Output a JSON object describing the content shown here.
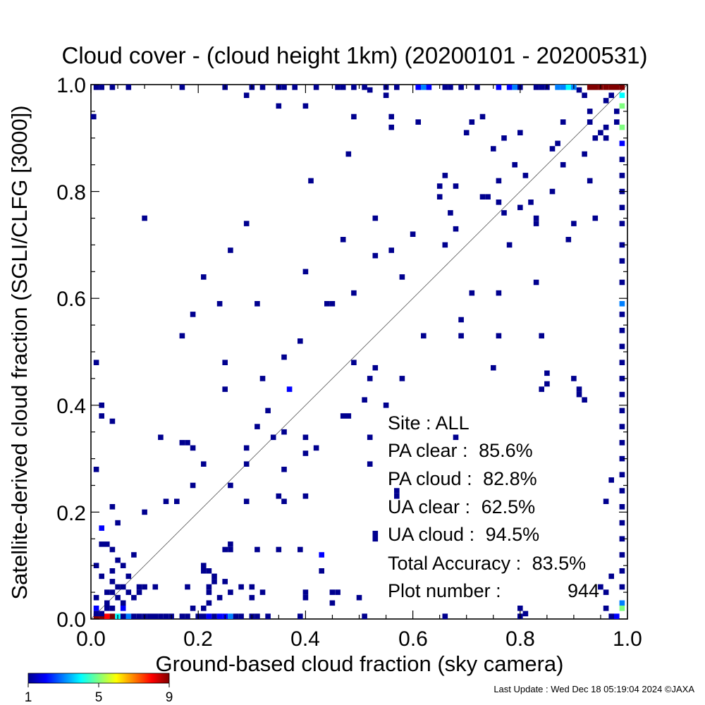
{
  "chart_data": {
    "type": "heatmap",
    "title": "Cloud cover - (cloud height 1km)  (20200101 - 20200531)",
    "xlabel": "Ground-based cloud fraction (sky camera)",
    "ylabel": "Satellite-derived cloud fraction (SGLI/CLFG [3000])",
    "xlim": [
      0,
      1
    ],
    "ylim": [
      0,
      1
    ],
    "x_ticks": [
      "0.0",
      "0.2",
      "0.4",
      "0.6",
      "0.8",
      "1.0"
    ],
    "y_ticks": [
      "0.0",
      "0.2",
      "0.4",
      "0.6",
      "0.8",
      "1.0"
    ],
    "grid": false,
    "reference_line": "1:1 diagonal",
    "colorbar": {
      "ticks": [
        "1",
        "5",
        "9"
      ],
      "min": 1,
      "max": 9,
      "colors": [
        "#00008f",
        "#0000ff",
        "#0080ff",
        "#00ffff",
        "#80ff80",
        "#ffff00",
        "#ff8000",
        "#ff0000",
        "#800000"
      ]
    },
    "stats": [
      {
        "label": "Site : ALL",
        "value": ""
      },
      {
        "label": "PA clear :",
        "value": "85.6%"
      },
      {
        "label": "PA cloud :",
        "value": "82.8%"
      },
      {
        "label": "UA clear :",
        "value": "62.5%"
      },
      {
        "label": "UA cloud :",
        "value": "94.5%"
      },
      {
        "label": "Total Accuracy :",
        "value": "83.5%"
      },
      {
        "label": "Plot number :",
        "value": "944"
      }
    ],
    "points": [
      [
        0.0,
        0.94,
        1
      ],
      [
        0.01,
        0.48,
        1
      ],
      [
        0.01,
        0.28,
        1
      ],
      [
        0.01,
        0.1,
        1
      ],
      [
        0.01,
        0.04,
        1
      ],
      [
        0.01,
        0.02,
        2
      ],
      [
        0.02,
        0.17,
        2
      ],
      [
        0.02,
        0.4,
        1
      ],
      [
        0.02,
        0.38,
        1
      ],
      [
        0.02,
        0.14,
        1
      ],
      [
        0.02,
        0.08,
        1
      ],
      [
        0.03,
        0.14,
        1
      ],
      [
        0.03,
        0.05,
        1
      ],
      [
        0.03,
        0.03,
        1
      ],
      [
        0.04,
        0.37,
        1
      ],
      [
        0.04,
        0.21,
        1
      ],
      [
        0.04,
        0.13,
        1
      ],
      [
        0.04,
        0.09,
        1
      ],
      [
        0.05,
        0.18,
        1
      ],
      [
        0.05,
        0.11,
        1
      ],
      [
        0.05,
        0.06,
        1
      ],
      [
        0.06,
        0.1,
        1
      ],
      [
        0.06,
        0.03,
        1
      ],
      [
        0.07,
        0.08,
        1
      ],
      [
        0.07,
        0.05,
        1
      ],
      [
        0.08,
        0.12,
        1
      ],
      [
        0.08,
        0.04,
        1
      ],
      [
        0.09,
        0.06,
        1
      ],
      [
        0.1,
        0.06,
        1
      ],
      [
        0.1,
        0.75,
        1
      ],
      [
        0.1,
        0.2,
        1
      ],
      [
        0.12,
        0.06,
        1
      ],
      [
        0.13,
        0.34,
        1
      ],
      [
        0.14,
        0.22,
        1
      ],
      [
        0.16,
        0.22,
        1
      ],
      [
        0.17,
        0.33,
        1
      ],
      [
        0.18,
        0.33,
        1
      ],
      [
        0.17,
        0.53,
        1
      ],
      [
        0.19,
        0.32,
        1
      ],
      [
        0.19,
        0.57,
        1
      ],
      [
        0.19,
        0.25,
        1
      ],
      [
        0.18,
        0.06,
        1
      ],
      [
        0.21,
        0.64,
        1
      ],
      [
        0.21,
        0.29,
        1
      ],
      [
        0.21,
        0.1,
        1
      ],
      [
        0.21,
        0.09,
        1
      ],
      [
        0.22,
        0.06,
        1
      ],
      [
        0.23,
        0.07,
        1
      ],
      [
        0.24,
        0.59,
        1
      ],
      [
        0.25,
        0.48,
        1
      ],
      [
        0.25,
        0.43,
        1
      ],
      [
        0.26,
        0.69,
        1
      ],
      [
        0.26,
        0.25,
        1
      ],
      [
        0.26,
        0.14,
        1
      ],
      [
        0.24,
        0.04,
        1
      ],
      [
        0.25,
        0.07,
        1
      ],
      [
        0.29,
        0.74,
        1
      ],
      [
        0.29,
        0.32,
        1
      ],
      [
        0.29,
        0.29,
        1
      ],
      [
        0.29,
        0.22,
        1
      ],
      [
        0.26,
        0.13,
        1
      ],
      [
        0.25,
        0.13,
        1
      ],
      [
        0.3,
        0.06,
        1
      ],
      [
        0.31,
        0.59,
        1
      ],
      [
        0.31,
        0.36,
        1
      ],
      [
        0.31,
        0.13,
        1
      ],
      [
        0.32,
        0.45,
        1
      ],
      [
        0.33,
        0.39,
        1
      ],
      [
        0.34,
        0.34,
        1
      ],
      [
        0.35,
        0.23,
        1
      ],
      [
        0.35,
        0.13,
        1
      ],
      [
        0.36,
        0.49,
        1
      ],
      [
        0.36,
        0.35,
        1
      ],
      [
        0.36,
        0.28,
        1
      ],
      [
        0.36,
        0.22,
        1
      ],
      [
        0.37,
        0.43,
        2
      ],
      [
        0.39,
        0.13,
        1
      ],
      [
        0.39,
        0.52,
        1
      ],
      [
        0.4,
        0.65,
        1
      ],
      [
        0.4,
        0.34,
        1
      ],
      [
        0.4,
        0.31,
        1
      ],
      [
        0.4,
        0.23,
        1
      ],
      [
        0.4,
        0.04,
        1
      ],
      [
        0.41,
        0.82,
        1
      ],
      [
        0.42,
        0.32,
        1
      ],
      [
        0.43,
        0.12,
        2
      ],
      [
        0.43,
        0.09,
        1
      ],
      [
        0.44,
        0.59,
        1
      ],
      [
        0.45,
        0.59,
        1
      ],
      [
        0.45,
        0.05,
        1
      ],
      [
        0.46,
        0.05,
        1
      ],
      [
        0.47,
        0.71,
        1
      ],
      [
        0.47,
        0.38,
        1
      ],
      [
        0.48,
        0.38,
        1
      ],
      [
        0.48,
        0.87,
        1
      ],
      [
        0.49,
        0.61,
        1
      ],
      [
        0.49,
        0.48,
        1
      ],
      [
        0.5,
        0.04,
        1
      ],
      [
        0.51,
        0.41,
        1
      ],
      [
        0.52,
        0.34,
        1
      ],
      [
        0.52,
        0.29,
        1
      ],
      [
        0.52,
        0.45,
        1
      ],
      [
        0.53,
        0.75,
        1
      ],
      [
        0.53,
        0.68,
        1
      ],
      [
        0.53,
        0.47,
        1
      ],
      [
        0.53,
        0.16,
        1
      ],
      [
        0.53,
        0.15,
        1
      ],
      [
        0.55,
        0.4,
        1
      ],
      [
        0.56,
        0.94,
        1
      ],
      [
        0.56,
        0.92,
        1
      ],
      [
        0.56,
        0.69,
        1
      ],
      [
        0.57,
        0.23,
        1
      ],
      [
        0.57,
        0.24,
        1
      ],
      [
        0.58,
        0.64,
        1
      ],
      [
        0.58,
        0.45,
        1
      ],
      [
        0.6,
        0.72,
        1
      ],
      [
        0.61,
        0.93,
        1
      ],
      [
        0.62,
        0.53,
        1
      ],
      [
        0.65,
        0.79,
        1
      ],
      [
        0.65,
        0.81,
        1
      ],
      [
        0.66,
        0.83,
        1
      ],
      [
        0.66,
        0.7,
        1
      ],
      [
        0.67,
        0.76,
        1
      ],
      [
        0.68,
        0.81,
        1
      ],
      [
        0.68,
        0.73,
        1
      ],
      [
        0.68,
        0.34,
        1
      ],
      [
        0.69,
        0.56,
        1
      ],
      [
        0.69,
        0.53,
        1
      ],
      [
        0.7,
        0.91,
        1
      ],
      [
        0.71,
        0.93,
        1
      ],
      [
        0.71,
        0.61,
        1
      ],
      [
        0.73,
        0.94,
        1
      ],
      [
        0.73,
        0.79,
        1
      ],
      [
        0.74,
        0.79,
        1
      ],
      [
        0.75,
        0.88,
        1
      ],
      [
        0.75,
        0.47,
        1
      ],
      [
        0.76,
        0.78,
        1
      ],
      [
        0.76,
        0.61,
        1
      ],
      [
        0.76,
        0.53,
        1
      ],
      [
        0.76,
        0.82,
        1
      ],
      [
        0.77,
        0.76,
        1
      ],
      [
        0.77,
        0.9,
        1
      ],
      [
        0.78,
        0.7,
        1
      ],
      [
        0.79,
        0.85,
        1
      ],
      [
        0.8,
        0.77,
        1
      ],
      [
        0.8,
        0.91,
        1
      ],
      [
        0.81,
        0.83,
        1
      ],
      [
        0.82,
        0.78,
        1
      ],
      [
        0.83,
        0.75,
        1
      ],
      [
        0.83,
        0.74,
        1
      ],
      [
        0.83,
        0.63,
        1
      ],
      [
        0.84,
        0.53,
        1
      ],
      [
        0.84,
        0.43,
        1
      ],
      [
        0.85,
        0.46,
        1
      ],
      [
        0.85,
        0.44,
        1
      ],
      [
        0.86,
        0.88,
        1
      ],
      [
        0.86,
        0.8,
        1
      ],
      [
        0.87,
        0.89,
        1
      ],
      [
        0.88,
        0.85,
        1
      ],
      [
        0.88,
        0.93,
        1
      ],
      [
        0.89,
        0.71,
        1
      ],
      [
        0.9,
        0.74,
        1
      ],
      [
        0.9,
        0.45,
        1
      ],
      [
        0.91,
        0.43,
        1
      ],
      [
        0.91,
        0.42,
        1
      ],
      [
        0.92,
        0.41,
        1
      ],
      [
        0.92,
        0.87,
        1
      ],
      [
        0.93,
        0.82,
        1
      ],
      [
        0.94,
        0.75,
        1
      ],
      [
        0.93,
        0.95,
        1
      ],
      [
        0.94,
        0.9,
        1
      ],
      [
        0.95,
        0.91,
        1
      ],
      [
        0.96,
        0.9,
        1
      ],
      [
        0.96,
        0.92,
        1
      ],
      [
        0.97,
        0.26,
        1
      ],
      [
        0.96,
        0.22,
        1
      ],
      [
        0.97,
        0.08,
        1
      ],
      [
        0.98,
        0.93,
        1
      ],
      [
        0.98,
        0.95,
        1
      ],
      [
        0.96,
        0.97,
        1
      ],
      [
        0.97,
        0.98,
        1
      ],
      [
        0.93,
        0.93,
        1
      ],
      [
        0.92,
        0.98,
        1
      ],
      [
        0.91,
        0.99,
        1
      ],
      [
        0.99,
        0.98,
        4
      ],
      [
        0.99,
        0.96,
        5
      ],
      [
        0.99,
        0.92,
        5
      ],
      [
        0.99,
        0.89,
        2
      ],
      [
        0.99,
        0.86,
        1
      ],
      [
        0.99,
        0.83,
        1
      ],
      [
        0.99,
        0.8,
        1
      ],
      [
        0.99,
        0.77,
        1
      ],
      [
        0.99,
        0.74,
        1
      ],
      [
        0.99,
        0.7,
        1
      ],
      [
        0.99,
        0.67,
        1
      ],
      [
        0.99,
        0.63,
        1
      ],
      [
        0.99,
        0.59,
        3
      ],
      [
        0.99,
        0.57,
        1
      ],
      [
        0.99,
        0.54,
        1
      ],
      [
        0.99,
        0.51,
        1
      ],
      [
        0.99,
        0.48,
        1
      ],
      [
        0.99,
        0.45,
        1
      ],
      [
        0.99,
        0.42,
        1
      ],
      [
        0.99,
        0.39,
        1
      ],
      [
        0.99,
        0.36,
        1
      ],
      [
        0.99,
        0.33,
        1
      ],
      [
        0.99,
        0.3,
        1
      ],
      [
        0.99,
        0.27,
        1
      ],
      [
        0.99,
        0.24,
        1
      ],
      [
        0.99,
        0.21,
        1
      ],
      [
        0.99,
        0.18,
        1
      ],
      [
        0.99,
        0.15,
        1
      ],
      [
        0.99,
        0.12,
        1
      ],
      [
        0.99,
        0.09,
        1
      ],
      [
        0.99,
        0.06,
        1
      ],
      [
        0.99,
        0.03,
        3
      ],
      [
        0.99,
        0.02,
        5
      ],
      [
        0.01,
        1.0,
        1
      ],
      [
        0.02,
        1.0,
        1
      ],
      [
        0.04,
        1.0,
        1
      ],
      [
        0.07,
        1.0,
        1
      ],
      [
        0.17,
        1.0,
        1
      ],
      [
        0.25,
        1.0,
        1
      ],
      [
        0.3,
        1.0,
        1
      ],
      [
        0.32,
        1.0,
        1
      ],
      [
        0.35,
        1.0,
        1
      ],
      [
        0.36,
        1.0,
        1
      ],
      [
        0.38,
        1.0,
        1
      ],
      [
        0.42,
        1.0,
        1
      ],
      [
        0.46,
        1.0,
        1
      ],
      [
        0.47,
        1.0,
        1
      ],
      [
        0.49,
        1.0,
        1
      ],
      [
        0.51,
        1.0,
        1
      ],
      [
        0.55,
        1.0,
        1
      ],
      [
        0.57,
        1.0,
        1
      ],
      [
        0.61,
        1.0,
        2
      ],
      [
        0.62,
        1.0,
        3
      ],
      [
        0.63,
        1.0,
        2
      ],
      [
        0.66,
        1.0,
        1
      ],
      [
        0.67,
        1.0,
        1
      ],
      [
        0.69,
        1.0,
        1
      ],
      [
        0.72,
        1.0,
        1
      ],
      [
        0.76,
        1.0,
        2
      ],
      [
        0.78,
        1.0,
        2
      ],
      [
        0.79,
        1.0,
        3
      ],
      [
        0.8,
        1.0,
        1
      ],
      [
        0.83,
        1.0,
        1
      ],
      [
        0.84,
        1.0,
        1
      ],
      [
        0.85,
        1.0,
        1
      ],
      [
        0.87,
        1.0,
        3
      ],
      [
        0.88,
        1.0,
        3
      ],
      [
        0.89,
        1.0,
        4
      ],
      [
        0.9,
        1.0,
        3
      ],
      [
        0.93,
        1.0,
        9
      ],
      [
        0.94,
        1.0,
        9
      ],
      [
        0.95,
        1.0,
        9
      ],
      [
        0.96,
        1.0,
        9
      ],
      [
        0.97,
        1.0,
        9
      ],
      [
        0.98,
        1.0,
        9
      ],
      [
        0.99,
        1.0,
        9
      ],
      [
        0.29,
        0.98,
        1
      ],
      [
        0.35,
        0.96,
        1
      ],
      [
        0.4,
        0.96,
        1
      ],
      [
        0.49,
        0.94,
        1
      ],
      [
        0.52,
        0.99,
        1
      ],
      [
        0.55,
        0.98,
        1
      ],
      [
        0.01,
        0.0,
        9
      ],
      [
        0.02,
        0.0,
        9
      ],
      [
        0.03,
        0.0,
        8
      ],
      [
        0.04,
        0.0,
        9
      ],
      [
        0.05,
        0.0,
        4
      ],
      [
        0.06,
        0.0,
        1
      ],
      [
        0.07,
        0.0,
        3
      ],
      [
        0.08,
        0.0,
        1
      ],
      [
        0.09,
        0.0,
        1
      ],
      [
        0.1,
        0.0,
        1
      ],
      [
        0.11,
        0.0,
        1
      ],
      [
        0.12,
        0.0,
        1
      ],
      [
        0.13,
        0.0,
        1
      ],
      [
        0.14,
        0.0,
        1
      ],
      [
        0.15,
        0.0,
        1
      ],
      [
        0.17,
        0.0,
        1
      ],
      [
        0.18,
        0.0,
        1
      ],
      [
        0.2,
        0.0,
        1
      ],
      [
        0.21,
        0.0,
        1
      ],
      [
        0.22,
        0.0,
        2
      ],
      [
        0.23,
        0.0,
        1
      ],
      [
        0.24,
        0.0,
        2
      ],
      [
        0.25,
        0.0,
        2
      ],
      [
        0.26,
        0.0,
        3
      ],
      [
        0.27,
        0.0,
        1
      ],
      [
        0.28,
        0.0,
        1
      ],
      [
        0.3,
        0.0,
        1
      ],
      [
        0.31,
        0.0,
        1
      ],
      [
        0.33,
        0.0,
        1
      ],
      [
        0.39,
        0.0,
        1
      ],
      [
        0.51,
        0.0,
        1
      ],
      [
        0.66,
        0.0,
        1
      ],
      [
        0.8,
        0.0,
        1
      ],
      [
        0.97,
        0.0,
        1
      ],
      [
        0.98,
        0.0,
        2
      ],
      [
        0.01,
        0.01,
        1
      ],
      [
        0.02,
        0.01,
        1
      ],
      [
        0.03,
        0.02,
        1
      ],
      [
        0.04,
        0.02,
        1
      ],
      [
        0.06,
        0.02,
        2
      ],
      [
        0.05,
        0.04,
        1
      ],
      [
        0.04,
        0.07,
        1
      ],
      [
        0.04,
        0.05,
        1
      ],
      [
        0.06,
        0.06,
        1
      ],
      [
        0.09,
        0.05,
        1
      ],
      [
        0.22,
        0.05,
        1
      ],
      [
        0.28,
        0.06,
        1
      ],
      [
        0.32,
        0.05,
        1
      ],
      [
        0.26,
        0.05,
        1
      ],
      [
        0.3,
        0.04,
        1
      ],
      [
        0.22,
        0.03,
        1
      ],
      [
        0.19,
        0.02,
        1
      ],
      [
        0.21,
        0.02,
        1
      ],
      [
        0.22,
        0.09,
        1
      ],
      [
        0.23,
        0.08,
        1
      ],
      [
        0.45,
        0.03,
        1
      ],
      [
        0.4,
        0.05,
        1
      ],
      [
        0.81,
        0.01,
        1
      ],
      [
        0.8,
        0.02,
        1
      ],
      [
        0.96,
        0.02,
        1
      ],
      [
        0.96,
        0.05,
        1
      ],
      [
        0.95,
        0.06,
        1
      ]
    ]
  },
  "footer": {
    "update_text": "Last Update : Wed Dec 18 05:19:04 2024  ©JAXA"
  }
}
